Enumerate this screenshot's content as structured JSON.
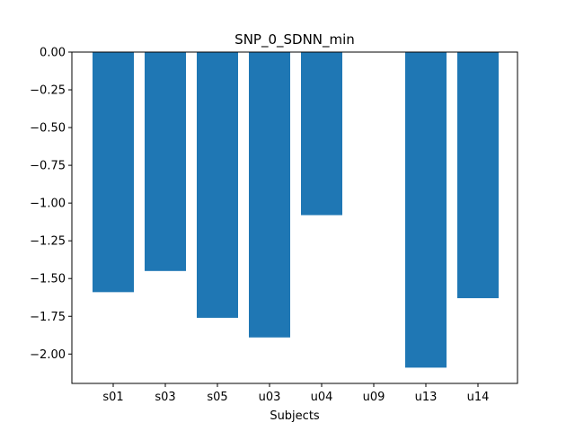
{
  "chart_data": {
    "type": "bar",
    "title": "SNP_0_SDNN_min",
    "xlabel": "Subjects",
    "ylabel": "",
    "categories": [
      "s01",
      "s03",
      "s05",
      "u03",
      "u04",
      "u09",
      "u13",
      "u14"
    ],
    "values": [
      -1.59,
      -1.45,
      -1.76,
      -1.89,
      -1.08,
      0.0,
      -2.09,
      -1.63
    ],
    "ylim": [
      -2.1945,
      0.0
    ],
    "yticks": [
      0.0,
      -0.25,
      -0.5,
      -0.75,
      -1.0,
      -1.25,
      -1.5,
      -1.75,
      -2.0
    ],
    "ytick_labels": [
      "0.00",
      "−0.25",
      "−0.50",
      "−0.75",
      "−1.00",
      "−1.25",
      "−1.50",
      "−1.75",
      "−2.00"
    ],
    "bar_color": "#1f77b4",
    "grid": false
  }
}
